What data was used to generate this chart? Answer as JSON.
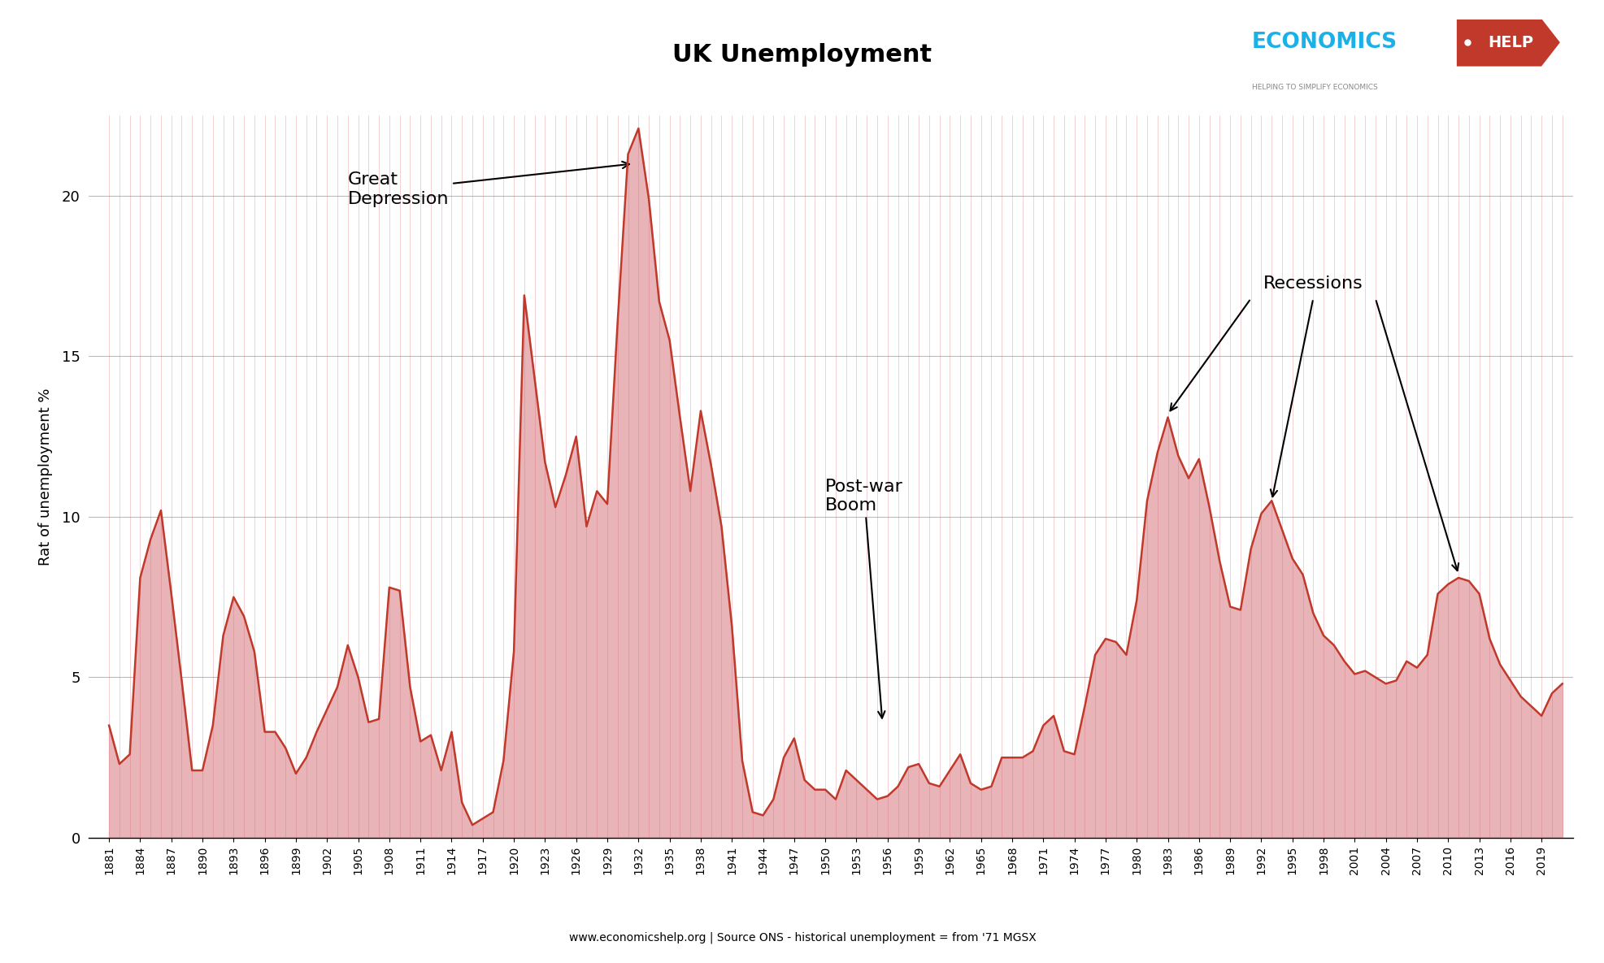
{
  "title": "UK Unemployment",
  "ylabel": "Rat of unemployment %",
  "source_text": "www.economicshelp.org | Source ONS - historical unemployment = from '71 MGSX",
  "line_color": "#c0392b",
  "fill_color": "#e8b4b8",
  "background_color": "#ffffff",
  "ylim": [
    0,
    22.5
  ],
  "yticks": [
    0,
    5,
    10,
    15,
    20
  ],
  "data": {
    "1881": 3.5,
    "1882": 2.3,
    "1883": 2.6,
    "1884": 8.1,
    "1885": 9.3,
    "1886": 10.2,
    "1887": 7.6,
    "1888": 4.9,
    "1889": 2.1,
    "1890": 2.1,
    "1891": 3.5,
    "1892": 6.3,
    "1893": 7.5,
    "1894": 6.9,
    "1895": 5.8,
    "1896": 3.3,
    "1897": 3.3,
    "1898": 2.8,
    "1899": 2.0,
    "1900": 2.5,
    "1901": 3.3,
    "1902": 4.0,
    "1903": 4.7,
    "1904": 6.0,
    "1905": 5.0,
    "1906": 3.6,
    "1907": 3.7,
    "1908": 7.8,
    "1909": 7.7,
    "1910": 4.7,
    "1911": 3.0,
    "1912": 3.2,
    "1913": 2.1,
    "1914": 3.3,
    "1915": 1.1,
    "1916": 0.4,
    "1917": 0.6,
    "1918": 0.8,
    "1919": 2.4,
    "1920": 5.8,
    "1921": 16.9,
    "1922": 14.3,
    "1923": 11.7,
    "1924": 10.3,
    "1925": 11.3,
    "1926": 12.5,
    "1927": 9.7,
    "1928": 10.8,
    "1929": 10.4,
    "1930": 16.1,
    "1931": 21.3,
    "1932": 22.1,
    "1933": 19.9,
    "1934": 16.7,
    "1935": 15.5,
    "1936": 13.1,
    "1937": 10.8,
    "1938": 13.3,
    "1939": 11.6,
    "1940": 9.7,
    "1941": 6.6,
    "1942": 2.4,
    "1943": 0.8,
    "1944": 0.7,
    "1945": 1.2,
    "1946": 2.5,
    "1947": 3.1,
    "1948": 1.8,
    "1949": 1.5,
    "1950": 1.5,
    "1951": 1.2,
    "1952": 2.1,
    "1953": 1.8,
    "1954": 1.5,
    "1955": 1.2,
    "1956": 1.3,
    "1957": 1.6,
    "1958": 2.2,
    "1959": 2.3,
    "1960": 1.7,
    "1961": 1.6,
    "1962": 2.1,
    "1963": 2.6,
    "1964": 1.7,
    "1965": 1.5,
    "1966": 1.6,
    "1967": 2.5,
    "1968": 2.5,
    "1969": 2.5,
    "1970": 2.7,
    "1971": 3.5,
    "1972": 3.8,
    "1973": 2.7,
    "1974": 2.6,
    "1975": 4.1,
    "1976": 5.7,
    "1977": 6.2,
    "1978": 6.1,
    "1979": 5.7,
    "1980": 7.4,
    "1981": 10.5,
    "1982": 12.0,
    "1983": 13.1,
    "1984": 11.9,
    "1985": 11.2,
    "1986": 11.8,
    "1987": 10.3,
    "1988": 8.6,
    "1989": 7.2,
    "1990": 7.1,
    "1991": 9.0,
    "1992": 10.1,
    "1993": 10.5,
    "1994": 9.6,
    "1995": 8.7,
    "1996": 8.2,
    "1997": 7.0,
    "1998": 6.3,
    "1999": 6.0,
    "2000": 5.5,
    "2001": 5.1,
    "2002": 5.2,
    "2003": 5.0,
    "2004": 4.8,
    "2005": 4.9,
    "2006": 5.5,
    "2007": 5.3,
    "2008": 5.7,
    "2009": 7.6,
    "2010": 7.9,
    "2011": 8.1,
    "2012": 8.0,
    "2013": 7.6,
    "2014": 6.2,
    "2015": 5.4,
    "2016": 4.9,
    "2017": 4.4,
    "2018": 4.1,
    "2019": 3.8,
    "2020": 4.5,
    "2021": 4.8
  },
  "logo_economics_color": "#1ab0e8",
  "logo_help_bg": "#c0392b",
  "logo_help_color": "#ffffff",
  "logo_subtitle": "HELPING TO SIMPLIFY ECONOMICS"
}
